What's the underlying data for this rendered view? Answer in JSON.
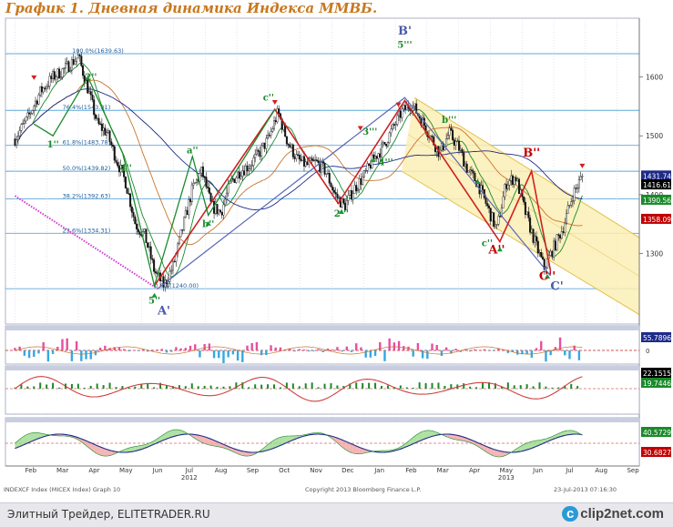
{
  "title": "График 1.   Дневная динамика Индекса ММВБ.",
  "footer": {
    "left_text": "Элитный Трейдер, ELITETRADER.RU",
    "logo_text": "clip2net.com",
    "logo_mark": "c"
  },
  "source": {
    "left": "INDEXCF Index (MICEX Index)  Graph 10",
    "middle": "Copyright 2013 Bloomberg Finance L.P.",
    "right": "23-Jul-2013 07:16:30"
  },
  "chart_data": [
    {
      "type": "line",
      "name": "MICEX Index daily",
      "x_axis": {
        "months": [
          "Feb",
          "Mar",
          "Apr",
          "May",
          "Jun",
          "Jul",
          "Aug",
          "Sep",
          "Oct",
          "Nov",
          "Dec",
          "Jan",
          "Feb",
          "Mar",
          "Apr",
          "May",
          "Jun",
          "Jul",
          "Aug",
          "Sep"
        ],
        "years": [
          {
            "label": "2012",
            "month_index": 5
          },
          {
            "label": "2013",
            "month_index": 15
          }
        ]
      },
      "y_axis": {
        "ticks": [
          1300,
          1400,
          1500,
          1600
        ],
        "ylim": [
          1180,
          1700
        ]
      },
      "series_close": [
        {
          "x": 0.0,
          "y": 1495
        },
        {
          "x": 0.4,
          "y": 1530
        },
        {
          "x": 0.8,
          "y": 1575
        },
        {
          "x": 1.2,
          "y": 1600
        },
        {
          "x": 1.6,
          "y": 1615
        },
        {
          "x": 2.0,
          "y": 1635
        },
        {
          "x": 2.3,
          "y": 1580
        },
        {
          "x": 2.6,
          "y": 1520
        },
        {
          "x": 2.9,
          "y": 1505
        },
        {
          "x": 3.2,
          "y": 1460
        },
        {
          "x": 3.5,
          "y": 1420
        },
        {
          "x": 3.8,
          "y": 1350
        },
        {
          "x": 4.1,
          "y": 1330
        },
        {
          "x": 4.4,
          "y": 1270
        },
        {
          "x": 4.7,
          "y": 1245
        },
        {
          "x": 5.0,
          "y": 1280
        },
        {
          "x": 5.3,
          "y": 1345
        },
        {
          "x": 5.6,
          "y": 1410
        },
        {
          "x": 5.9,
          "y": 1440
        },
        {
          "x": 6.2,
          "y": 1380
        },
        {
          "x": 6.5,
          "y": 1370
        },
        {
          "x": 6.8,
          "y": 1420
        },
        {
          "x": 7.1,
          "y": 1440
        },
        {
          "x": 7.4,
          "y": 1450
        },
        {
          "x": 7.7,
          "y": 1470
        },
        {
          "x": 8.0,
          "y": 1495
        },
        {
          "x": 8.3,
          "y": 1540
        },
        {
          "x": 8.6,
          "y": 1490
        },
        {
          "x": 8.9,
          "y": 1460
        },
        {
          "x": 9.2,
          "y": 1450
        },
        {
          "x": 9.5,
          "y": 1455
        },
        {
          "x": 9.8,
          "y": 1440
        },
        {
          "x": 10.1,
          "y": 1400
        },
        {
          "x": 10.4,
          "y": 1380
        },
        {
          "x": 10.7,
          "y": 1410
        },
        {
          "x": 11.0,
          "y": 1430
        },
        {
          "x": 11.3,
          "y": 1460
        },
        {
          "x": 11.6,
          "y": 1480
        },
        {
          "x": 11.9,
          "y": 1510
        },
        {
          "x": 12.2,
          "y": 1540
        },
        {
          "x": 12.5,
          "y": 1555
        },
        {
          "x": 12.8,
          "y": 1530
        },
        {
          "x": 13.1,
          "y": 1500
        },
        {
          "x": 13.4,
          "y": 1470
        },
        {
          "x": 13.7,
          "y": 1505
        },
        {
          "x": 14.0,
          "y": 1480
        },
        {
          "x": 14.3,
          "y": 1440
        },
        {
          "x": 14.6,
          "y": 1420
        },
        {
          "x": 14.9,
          "y": 1380
        },
        {
          "x": 15.2,
          "y": 1340
        },
        {
          "x": 15.5,
          "y": 1420
        },
        {
          "x": 15.8,
          "y": 1430
        },
        {
          "x": 16.1,
          "y": 1370
        },
        {
          "x": 16.4,
          "y": 1320
        },
        {
          "x": 16.7,
          "y": 1275
        },
        {
          "x": 17.0,
          "y": 1310
        },
        {
          "x": 17.3,
          "y": 1345
        },
        {
          "x": 17.6,
          "y": 1400
        },
        {
          "x": 17.9,
          "y": 1431
        }
      ],
      "fibonacci_levels": [
        {
          "label": "100.0%(1639.63)",
          "value": 1639.63
        },
        {
          "label": "76.4%(1543.31)",
          "value": 1543.31
        },
        {
          "label": "61.8%(1483.78)",
          "value": 1483.78
        },
        {
          "label": "50.0%(1439.82)",
          "value": 1439.82
        },
        {
          "label": "38.2%(1392.63)",
          "value": 1392.63
        },
        {
          "label": "23.6%(1334.31)",
          "value": 1334.31
        },
        {
          "label": "0.0%(1240.00)",
          "value": 1240.0
        }
      ],
      "right_labels": [
        {
          "text": "1431.74",
          "value": 1431.74,
          "color": "#1e2b88"
        },
        {
          "text": "1416.61",
          "value": 1416.61,
          "color": "#000000"
        },
        {
          "text": "1390.56",
          "value": 1390.56,
          "color": "#1a8a2a"
        },
        {
          "text": "1358.09",
          "value": 1358.09,
          "color": "#c00000"
        }
      ],
      "wave_labels": [
        {
          "text": "B'",
          "x": 12.3,
          "y": 1672,
          "color": "#4a5aa8"
        },
        {
          "text": "5'''",
          "x": 12.3,
          "y": 1650,
          "color": "#1a8a2a"
        },
        {
          "text": "c''",
          "x": 8.0,
          "y": 1560,
          "color": "#1a8a2a"
        },
        {
          "text": "2''",
          "x": 2.4,
          "y": 1595,
          "color": "#1a8a2a"
        },
        {
          "text": "1''",
          "x": 1.2,
          "y": 1480,
          "color": "#1a8a2a"
        },
        {
          "text": "4''",
          "x": 3.5,
          "y": 1440,
          "color": "#1a8a2a"
        },
        {
          "text": "a''",
          "x": 5.6,
          "y": 1470,
          "color": "#1a8a2a"
        },
        {
          "text": "b''",
          "x": 6.1,
          "y": 1345,
          "color": "#1a8a2a"
        },
        {
          "text": "5''",
          "x": 4.4,
          "y": 1215,
          "color": "#1a8a2a"
        },
        {
          "text": "A'",
          "x": 4.7,
          "y": 1196,
          "color": "#4a5aa8"
        },
        {
          "text": "2'''",
          "x": 10.3,
          "y": 1363,
          "color": "#1a8a2a"
        },
        {
          "text": "4'''",
          "x": 11.7,
          "y": 1450,
          "color": "#1a8a2a"
        },
        {
          "text": "3'''",
          "x": 11.2,
          "y": 1502,
          "color": "#1a8a2a"
        },
        {
          "text": "b'''",
          "x": 13.7,
          "y": 1522,
          "color": "#1a8a2a"
        },
        {
          "text": "B''",
          "x": 16.3,
          "y": 1465,
          "color": "#c00000"
        },
        {
          "text": "A''",
          "x": 15.2,
          "y": 1300,
          "color": "#c00000"
        },
        {
          "text": "c''",
          "x": 14.9,
          "y": 1312,
          "color": "#1a8a2a"
        },
        {
          "text": "C''",
          "x": 16.8,
          "y": 1255,
          "color": "#c00000"
        },
        {
          "text": "C'",
          "x": 17.1,
          "y": 1238,
          "color": "#4a5aa8"
        }
      ],
      "red_zigzag": [
        {
          "x": 4.4,
          "y": 1245
        },
        {
          "x": 8.2,
          "y": 1545
        },
        {
          "x": 10.2,
          "y": 1385
        },
        {
          "x": 12.3,
          "y": 1560
        },
        {
          "x": 15.3,
          "y": 1320
        },
        {
          "x": 16.3,
          "y": 1440
        },
        {
          "x": 16.9,
          "y": 1270
        }
      ],
      "blue_zigzag": [
        {
          "x": 4.5,
          "y": 1240
        },
        {
          "x": 12.3,
          "y": 1565
        },
        {
          "x": 16.9,
          "y": 1262
        }
      ],
      "channel": {
        "upper": [
          {
            "x": 12.6,
            "y": 1565
          },
          {
            "x": 20.5,
            "y": 1300
          }
        ],
        "lower": [
          {
            "x": 12.2,
            "y": 1440
          },
          {
            "x": 20.5,
            "y": 1170
          }
        ]
      },
      "magenta_trendline": [
        {
          "x": 0.0,
          "y": 1398
        },
        {
          "x": 4.5,
          "y": 1240
        }
      ]
    },
    {
      "type": "bar",
      "name": "Volume histogram panel",
      "right_labels": [
        {
          "text": "55.7896",
          "value": 55.7896,
          "color": "#1e2b88"
        }
      ],
      "tick_labels": [
        "0"
      ]
    },
    {
      "type": "line",
      "name": "Oscillator panel 2",
      "right_labels": [
        {
          "text": "22.1515",
          "value": 22.1515,
          "color": "#000000"
        },
        {
          "text": "19.7446",
          "value": 19.7446,
          "color": "#1a8a2a"
        }
      ]
    },
    {
      "type": "area",
      "name": "Oscillator panel 3",
      "right_labels": [
        {
          "text": "40.5729",
          "value": 40.5729,
          "color": "#1a8a2a"
        },
        {
          "text": "30.6827",
          "value": 30.6827,
          "color": "#c00000"
        }
      ]
    }
  ]
}
